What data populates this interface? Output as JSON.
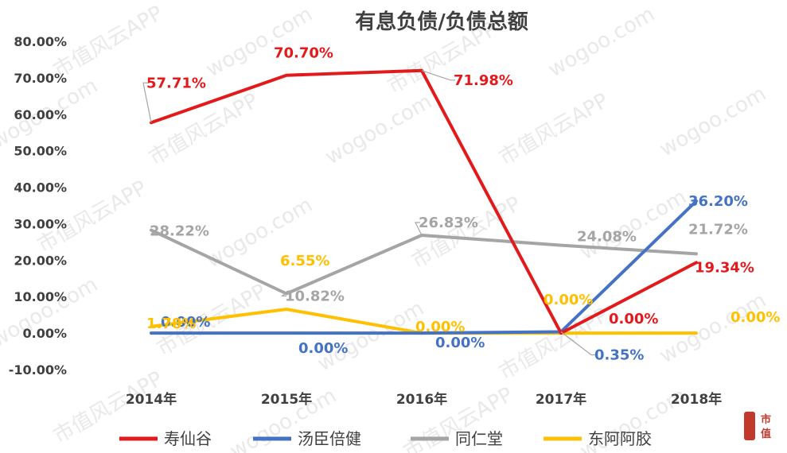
{
  "chart_data": {
    "type": "line",
    "title": "有息负债/负债总额",
    "categories": [
      "2014年",
      "2015年",
      "2016年",
      "2017年",
      "2018年"
    ],
    "ylim": [
      -10,
      80
    ],
    "yticks": [
      "-10.00%",
      "0.00%",
      "10.00%",
      "20.00%",
      "30.00%",
      "40.00%",
      "50.00%",
      "60.00%",
      "70.00%",
      "80.00%"
    ],
    "grid": false,
    "legend": "bottom",
    "series": [
      {
        "name": "寿仙谷",
        "color": "#e31a1c",
        "values": [
          57.71,
          70.7,
          71.98,
          0.0,
          19.34
        ],
        "labels": [
          "57.71%",
          "70.70%",
          "71.98%",
          "0.00%",
          "19.34%"
        ]
      },
      {
        "name": "汤臣倍健",
        "color": "#4472c4",
        "values": [
          0.0,
          0.0,
          0.0,
          0.35,
          36.2
        ],
        "labels": [
          "0.00%",
          "0.00%",
          "0.00%",
          "0.35%",
          "36.20%"
        ]
      },
      {
        "name": "同仁堂",
        "color": "#a5a5a5",
        "values": [
          28.22,
          10.82,
          26.83,
          24.08,
          21.72
        ],
        "labels": [
          "28.22%",
          "10.82%",
          "26.83%",
          "24.08%",
          "21.72%"
        ]
      },
      {
        "name": "东阿阿胶",
        "color": "#ffc000",
        "values": [
          1.78,
          6.55,
          0.0,
          0.0,
          0.0
        ],
        "labels": [
          "1.78%",
          "6.55%",
          "0.00%",
          "0.00%",
          "0.00%"
        ]
      }
    ]
  },
  "watermark": {
    "site": "wogoo.com",
    "app": "市值风云APP"
  },
  "logo": {
    "text": "市值"
  }
}
